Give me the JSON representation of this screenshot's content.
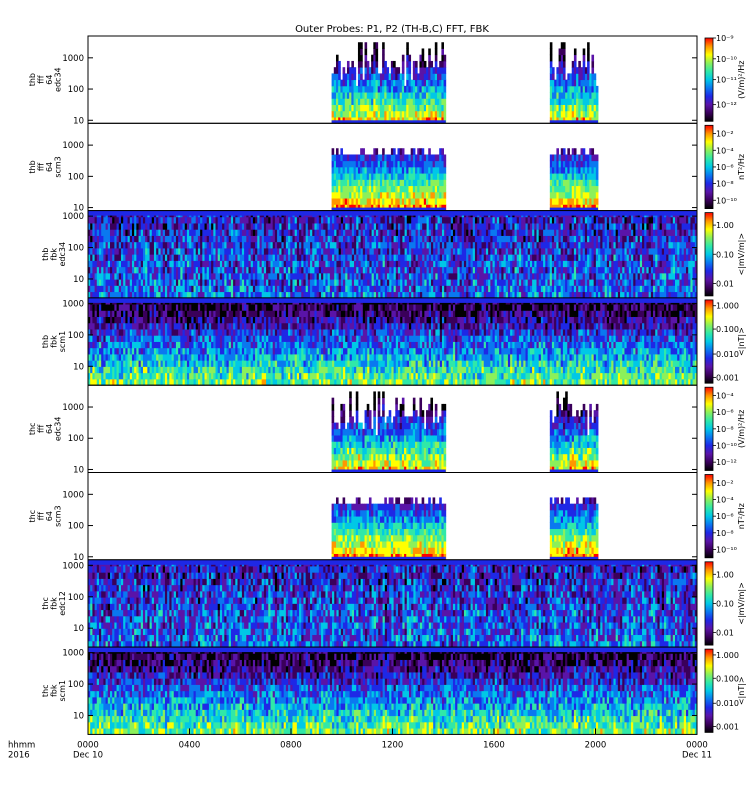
{
  "chart_data": {
    "type": "heatmap",
    "title": "Outer Probes: P1, P2 (TH-B,C) FFT, FBK",
    "x_axis": {
      "label_line1": "hhmm",
      "label_line2": "2016",
      "ticks": [
        "0000",
        "0400",
        "0800",
        "1200",
        "1600",
        "2000",
        "0000"
      ],
      "tick_hours": [
        0,
        4,
        8,
        12,
        16,
        20,
        24
      ],
      "start_date": "Dec 10",
      "end_date": "Dec 11",
      "range_hours": [
        0,
        24
      ]
    },
    "colormap": [
      "#000000",
      "#3a005a",
      "#5a14a8",
      "#1e28e6",
      "#0a78f0",
      "#00c8e6",
      "#30e8a8",
      "#8cf05a",
      "#ffff00",
      "#ff9600",
      "#ff0000"
    ],
    "panels": [
      {
        "label": [
          "thb",
          "fff",
          "64",
          "edc34"
        ],
        "yscale": "log",
        "ylim": [
          8,
          5000
        ],
        "y_ticks": [
          "1000",
          "100",
          "10"
        ],
        "y_tick_values": [
          1000,
          100,
          10
        ],
        "colorbar": {
          "label": "(V/m)²/Hz",
          "ticks": [
            "10⁻⁹",
            "10⁻¹⁰",
            "10⁻¹¹",
            "10⁻¹²"
          ],
          "positions": [
            0.0,
            0.25,
            0.5,
            0.8
          ]
        },
        "coverage_hours": [
          [
            9.6,
            14.1
          ],
          [
            18.2,
            20.1
          ]
        ],
        "style": "fft_edc"
      },
      {
        "label": [
          "thb",
          "fff",
          "64",
          "scm3"
        ],
        "yscale": "log",
        "ylim": [
          8,
          5000
        ],
        "y_ticks": [
          "1000",
          "100",
          "10"
        ],
        "y_tick_values": [
          1000,
          100,
          10
        ],
        "colorbar": {
          "label": "nT²/Hz",
          "ticks": [
            "10⁻²",
            "10⁻⁴",
            "10⁻⁶",
            "10⁻⁸",
            "10⁻¹⁰"
          ],
          "positions": [
            0.1,
            0.3,
            0.5,
            0.7,
            0.9
          ]
        },
        "coverage_hours": [
          [
            9.6,
            14.1
          ],
          [
            18.2,
            20.1
          ]
        ],
        "style": "fft_scm"
      },
      {
        "label": [
          "thb",
          "fbk",
          "edc34"
        ],
        "yscale": "log",
        "ylim": [
          2.5,
          1500
        ],
        "y_ticks": [
          "1000",
          "100",
          "10"
        ],
        "y_tick_values": [
          1000,
          100,
          10
        ],
        "colorbar": {
          "label": "<|mV/m|>",
          "ticks": [
            "1.00",
            "0.10",
            "0.01"
          ],
          "positions": [
            0.15,
            0.5,
            0.85
          ]
        },
        "coverage_hours": [
          [
            0,
            24
          ]
        ],
        "style": "fbk_edc"
      },
      {
        "label": [
          "thb",
          "fbk",
          "scm1"
        ],
        "yscale": "log",
        "ylim": [
          2.5,
          1500
        ],
        "y_ticks": [
          "1000",
          "100",
          "10"
        ],
        "y_tick_values": [
          1000,
          100,
          10
        ],
        "colorbar": {
          "label": "<|nT|>",
          "ticks": [
            "1.000",
            "0.100",
            "0.010",
            "0.001"
          ],
          "positions": [
            0.07,
            0.35,
            0.65,
            0.93
          ]
        },
        "coverage_hours": [
          [
            0,
            24
          ]
        ],
        "style": "fbk_scm"
      },
      {
        "label": [
          "thc",
          "fff",
          "64",
          "edc34"
        ],
        "yscale": "log",
        "ylim": [
          8,
          5000
        ],
        "y_ticks": [
          "1000",
          "100",
          "10"
        ],
        "y_tick_values": [
          1000,
          100,
          10
        ],
        "colorbar": {
          "label": "(V/m)²/Hz",
          "ticks": [
            "10⁻⁴",
            "10⁻⁶",
            "10⁻⁸",
            "10⁻¹⁰",
            "10⁻¹²"
          ],
          "positions": [
            0.1,
            0.3,
            0.5,
            0.7,
            0.9
          ]
        },
        "coverage_hours": [
          [
            9.6,
            14.1
          ],
          [
            18.2,
            20.1
          ]
        ],
        "style": "fft_edc"
      },
      {
        "label": [
          "thc",
          "fff",
          "64",
          "scm3"
        ],
        "yscale": "log",
        "ylim": [
          8,
          5000
        ],
        "y_ticks": [
          "1000",
          "100",
          "10"
        ],
        "y_tick_values": [
          1000,
          100,
          10
        ],
        "colorbar": {
          "label": "nT²/Hz",
          "ticks": [
            "10⁻²",
            "10⁻⁴",
            "10⁻⁶",
            "10⁻⁸",
            "10⁻¹⁰"
          ],
          "positions": [
            0.1,
            0.3,
            0.5,
            0.7,
            0.9
          ]
        },
        "coverage_hours": [
          [
            9.6,
            14.1
          ],
          [
            18.2,
            20.1
          ]
        ],
        "style": "fft_scm"
      },
      {
        "label": [
          "thc",
          "fbk",
          "edc12"
        ],
        "yscale": "log",
        "ylim": [
          2.5,
          1500
        ],
        "y_ticks": [
          "1000",
          "100",
          "10"
        ],
        "y_tick_values": [
          1000,
          100,
          10
        ],
        "colorbar": {
          "label": "<|mV/m|>",
          "ticks": [
            "1.00",
            "0.10",
            "0.01"
          ],
          "positions": [
            0.15,
            0.5,
            0.85
          ]
        },
        "coverage_hours": [
          [
            0,
            24
          ]
        ],
        "style": "fbk_edc"
      },
      {
        "label": [
          "thc",
          "fbk",
          "scm1"
        ],
        "yscale": "log",
        "ylim": [
          2.5,
          1500
        ],
        "y_ticks": [
          "1000",
          "100",
          "10"
        ],
        "y_tick_values": [
          1000,
          100,
          10
        ],
        "colorbar": {
          "label": "<|nT|>",
          "ticks": [
            "1.000",
            "0.100",
            "0.010",
            "0.001"
          ],
          "positions": [
            0.07,
            0.35,
            0.65,
            0.93
          ]
        },
        "coverage_hours": [
          [
            0,
            24
          ]
        ],
        "style": "fbk_scm"
      }
    ]
  }
}
